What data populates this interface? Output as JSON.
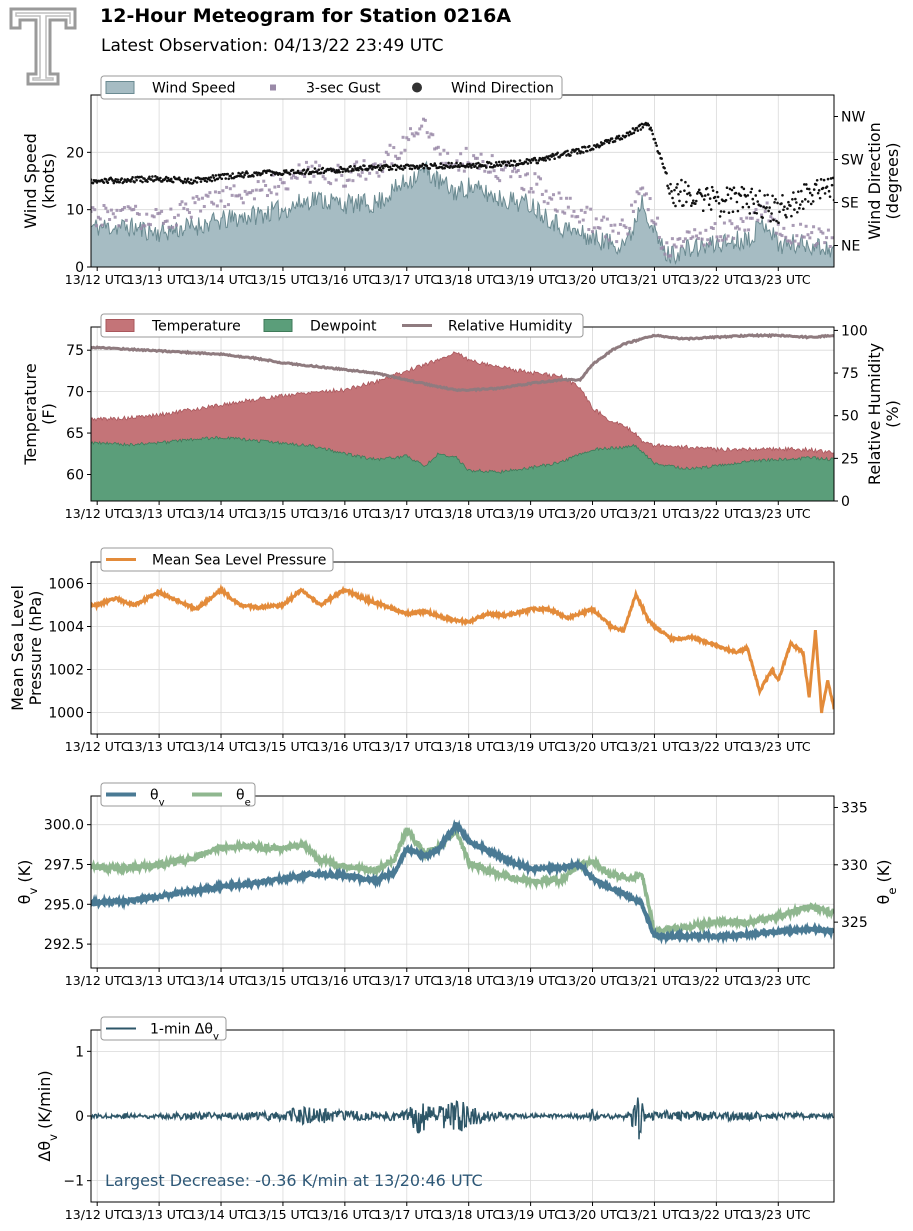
{
  "header": {
    "title": "12-Hour Meteogram for Station 0216A",
    "subtitle": "Latest Observation: 04/13/22 23:49 UTC"
  },
  "colors": {
    "wind_speed": "#a6bcc3",
    "wind_speed_line": "#6a8a91",
    "gust": "#9a8aa8",
    "wind_dir": "#111111",
    "temperature": "#c47478",
    "dewpoint": "#5b9e7a",
    "rh": "#8f7b7f",
    "pressure": "#e38b3a",
    "theta_v": "#4a7a94",
    "theta_e": "#8fb78f",
    "dtheta": "#2d5668",
    "annotation": "#2e5877"
  },
  "chart_data": [
    {
      "type": "area",
      "name": "wind",
      "x_ticks": [
        "13/12 UTC",
        "13/13 UTC",
        "13/14 UTC",
        "13/15 UTC",
        "13/16 UTC",
        "13/17 UTC",
        "13/18 UTC",
        "13/19 UTC",
        "13/20 UTC",
        "13/21 UTC",
        "13/22 UTC",
        "13/23 UTC"
      ],
      "xlim_hours": [
        11.9,
        23.9
      ],
      "ylabel": "Wind Speed\n(knots)",
      "ylim": [
        0,
        30
      ],
      "y_ticks": [
        0,
        10,
        20
      ],
      "y2label": "Wind Direction\n(degrees)",
      "y2_ticks": [
        "NE",
        "SE",
        "SW",
        "NW"
      ],
      "y2_tick_values": [
        45,
        135,
        225,
        315
      ],
      "y2lim": [
        0,
        360
      ],
      "legend": [
        "Wind Speed",
        "3-sec Gust",
        "Wind Direction"
      ],
      "series": [
        {
          "name": "Wind Speed",
          "x": [
            12.0,
            12.5,
            13.0,
            13.5,
            14.0,
            14.5,
            15.0,
            15.5,
            16.0,
            16.5,
            17.0,
            17.3,
            17.5,
            17.8,
            18.0,
            18.5,
            19.0,
            19.5,
            20.0,
            20.4,
            20.6,
            20.8,
            21.0,
            21.2,
            21.5,
            22.0,
            22.5,
            22.8,
            23.0,
            23.5,
            23.9
          ],
          "values": [
            7,
            7,
            6,
            7,
            8,
            9,
            10,
            12,
            11,
            11,
            15,
            17,
            15,
            13,
            14,
            12,
            11,
            7,
            5,
            4,
            5,
            12,
            6,
            2,
            3,
            4,
            5,
            8,
            4,
            4,
            3
          ]
        },
        {
          "name": "3-sec Gust",
          "x": [
            12.0,
            12.5,
            13.0,
            13.5,
            14.0,
            14.5,
            15.0,
            15.5,
            16.0,
            16.5,
            17.0,
            17.3,
            17.5,
            17.8,
            18.0,
            18.5,
            19.0,
            19.5,
            20.0,
            20.4,
            20.6,
            20.8,
            21.0,
            21.2,
            21.5,
            22.0,
            22.5,
            22.8,
            23.0,
            23.5,
            23.9
          ],
          "values": [
            9,
            9,
            8,
            10,
            12,
            13,
            15,
            17,
            16,
            17,
            22,
            26,
            20,
            18,
            19,
            17,
            15,
            11,
            8,
            6,
            8,
            15,
            8,
            3,
            5,
            6,
            7,
            11,
            6,
            6,
            5
          ]
        },
        {
          "name": "Wind Direction",
          "x": [
            12.0,
            12.5,
            13.0,
            13.5,
            14.0,
            14.5,
            15.0,
            15.5,
            16.0,
            16.5,
            17.0,
            17.5,
            18.0,
            18.5,
            19.0,
            19.5,
            20.0,
            20.5,
            20.9,
            21.1,
            21.3,
            21.5,
            22.0,
            22.5,
            23.0,
            23.5,
            23.9
          ],
          "values": [
            180,
            182,
            185,
            180,
            188,
            195,
            198,
            200,
            205,
            208,
            210,
            212,
            212,
            215,
            220,
            235,
            250,
            275,
            300,
            230,
            150,
            160,
            135,
            140,
            120,
            150,
            170
          ]
        }
      ]
    },
    {
      "type": "area",
      "name": "temperature",
      "x_ticks": [
        "13/12 UTC",
        "13/13 UTC",
        "13/14 UTC",
        "13/15 UTC",
        "13/16 UTC",
        "13/17 UTC",
        "13/18 UTC",
        "13/19 UTC",
        "13/20 UTC",
        "13/21 UTC",
        "13/22 UTC",
        "13/23 UTC"
      ],
      "xlim_hours": [
        11.9,
        23.9
      ],
      "ylabel": "Temperature\n(F)",
      "ylim": [
        56.8,
        77.8
      ],
      "y_ticks": [
        60,
        65,
        70,
        75
      ],
      "y2label": "Relative Humidity\n(%)",
      "y2lim": [
        0,
        102
      ],
      "y2_ticks": [
        0,
        25,
        50,
        75,
        100
      ],
      "legend": [
        "Temperature",
        "Dewpoint",
        "Relative Humidity"
      ],
      "series": [
        {
          "name": "Temperature",
          "x": [
            12.0,
            12.5,
            13.0,
            13.5,
            14.0,
            14.5,
            15.0,
            15.5,
            16.0,
            16.5,
            17.0,
            17.5,
            17.8,
            18.0,
            18.5,
            19.0,
            19.5,
            19.8,
            20.0,
            20.3,
            20.5,
            20.7,
            20.8,
            21.0,
            21.5,
            22.0,
            22.5,
            23.0,
            23.5,
            23.9
          ],
          "values": [
            66.7,
            66.8,
            67.2,
            67.8,
            68.4,
            69.0,
            69.5,
            70.0,
            70.2,
            71.2,
            72.5,
            73.8,
            74.8,
            73.8,
            73.0,
            72.3,
            71.8,
            70.5,
            68.0,
            66.5,
            65.8,
            65.0,
            64.0,
            63.5,
            63.3,
            63.0,
            63.1,
            63.1,
            63.0,
            62.6
          ]
        },
        {
          "name": "Dewpoint",
          "x": [
            12.0,
            12.5,
            13.0,
            13.5,
            14.0,
            14.5,
            15.0,
            15.5,
            16.0,
            16.5,
            17.0,
            17.3,
            17.5,
            17.8,
            18.0,
            18.5,
            19.0,
            19.5,
            20.0,
            20.5,
            20.7,
            21.0,
            21.5,
            22.0,
            22.5,
            23.0,
            23.5,
            23.9
          ],
          "values": [
            63.8,
            63.6,
            63.8,
            64.2,
            64.5,
            64.1,
            63.8,
            63.4,
            62.5,
            61.8,
            62.2,
            61.0,
            62.5,
            62.0,
            60.5,
            60.3,
            60.8,
            61.5,
            63.0,
            63.3,
            63.5,
            61.3,
            60.7,
            61.0,
            61.6,
            61.8,
            62.0,
            61.8
          ]
        },
        {
          "name": "Relative Humidity",
          "x": [
            12.0,
            12.5,
            13.0,
            13.5,
            14.0,
            14.5,
            15.0,
            15.5,
            16.0,
            16.5,
            17.0,
            17.5,
            17.8,
            18.0,
            18.5,
            19.0,
            19.5,
            19.8,
            20.0,
            20.3,
            20.5,
            20.7,
            21.0,
            21.5,
            22.0,
            22.5,
            23.0,
            23.5,
            23.9
          ],
          "values": [
            90,
            89,
            88,
            87,
            86,
            84,
            81,
            79,
            77,
            75,
            71,
            67,
            65,
            65,
            66,
            69,
            71,
            71,
            80,
            88,
            92,
            94,
            97,
            95,
            96,
            97,
            97,
            96,
            97
          ]
        }
      ]
    },
    {
      "type": "line",
      "name": "pressure",
      "x_ticks": [
        "13/12 UTC",
        "13/13 UTC",
        "13/14 UTC",
        "13/15 UTC",
        "13/16 UTC",
        "13/17 UTC",
        "13/18 UTC",
        "13/19 UTC",
        "13/20 UTC",
        "13/21 UTC",
        "13/22 UTC",
        "13/23 UTC"
      ],
      "xlim_hours": [
        11.9,
        23.9
      ],
      "ylabel": "Mean Sea Level\nPressure (hPa)",
      "ylim": [
        999.0,
        1007.0
      ],
      "y_ticks": [
        1000,
        1002,
        1004,
        1006
      ],
      "legend": [
        "Mean Sea Level Pressure"
      ],
      "series": [
        {
          "name": "Mean Sea Level Pressure",
          "x": [
            12.0,
            12.3,
            12.6,
            13.0,
            13.3,
            13.6,
            14.0,
            14.3,
            14.6,
            15.0,
            15.3,
            15.6,
            16.0,
            16.3,
            16.6,
            17.0,
            17.3,
            17.6,
            18.0,
            18.3,
            18.6,
            19.0,
            19.3,
            19.6,
            20.0,
            20.3,
            20.5,
            20.7,
            20.9,
            21.0,
            21.3,
            21.6,
            22.0,
            22.3,
            22.5,
            22.7,
            22.9,
            23.0,
            23.2,
            23.4,
            23.5,
            23.6,
            23.7,
            23.8,
            23.9
          ],
          "values": [
            1005.0,
            1005.3,
            1005.0,
            1005.6,
            1005.2,
            1004.8,
            1005.7,
            1005.0,
            1004.9,
            1005.0,
            1005.7,
            1005.0,
            1005.7,
            1005.3,
            1005.0,
            1004.6,
            1004.7,
            1004.4,
            1004.2,
            1004.6,
            1004.5,
            1004.8,
            1004.8,
            1004.4,
            1004.8,
            1004.0,
            1003.8,
            1005.5,
            1004.3,
            1004.0,
            1003.4,
            1003.5,
            1003.1,
            1002.8,
            1003.0,
            1001.0,
            1002.0,
            1001.5,
            1003.2,
            1002.8,
            1000.7,
            1003.8,
            1000.0,
            1001.5,
            1000.2
          ]
        }
      ]
    },
    {
      "type": "line",
      "name": "theta",
      "x_ticks": [
        "13/12 UTC",
        "13/13 UTC",
        "13/14 UTC",
        "13/15 UTC",
        "13/16 UTC",
        "13/17 UTC",
        "13/18 UTC",
        "13/19 UTC",
        "13/20 UTC",
        "13/21 UTC",
        "13/22 UTC",
        "13/23 UTC"
      ],
      "xlim_hours": [
        11.9,
        23.9
      ],
      "ylabel": "θv (K)",
      "ylim": [
        291.0,
        301.8
      ],
      "y_ticks": [
        292.5,
        295.0,
        297.5,
        300.0
      ],
      "y2label": "θe (K)",
      "y2lim": [
        321.0,
        336.0
      ],
      "y2_ticks": [
        325,
        330,
        335
      ],
      "legend": [
        "θv",
        "θe"
      ],
      "series": [
        {
          "name": "θv",
          "x": [
            12.0,
            12.5,
            13.0,
            13.5,
            14.0,
            14.5,
            15.0,
            15.5,
            16.0,
            16.5,
            16.8,
            17.0,
            17.3,
            17.5,
            17.8,
            18.0,
            18.3,
            18.6,
            19.0,
            19.5,
            19.8,
            20.0,
            20.3,
            20.6,
            20.8,
            21.0,
            21.5,
            22.0,
            22.5,
            23.0,
            23.5,
            23.9
          ],
          "values": [
            295.1,
            295.2,
            295.5,
            295.8,
            296.1,
            296.3,
            296.6,
            296.9,
            296.8,
            296.5,
            297.0,
            298.5,
            298.0,
            298.4,
            300.0,
            299.0,
            298.4,
            297.8,
            297.2,
            297.3,
            297.5,
            296.6,
            296.0,
            295.5,
            295.0,
            293.0,
            293.0,
            293.0,
            293.1,
            293.3,
            293.4,
            293.3
          ]
        },
        {
          "name": "θe",
          "x": [
            12.0,
            12.5,
            13.0,
            13.5,
            14.0,
            14.5,
            15.0,
            15.3,
            15.6,
            16.0,
            16.5,
            16.8,
            17.0,
            17.3,
            17.5,
            17.8,
            18.0,
            18.3,
            18.6,
            19.0,
            19.5,
            19.8,
            20.0,
            20.3,
            20.6,
            20.8,
            21.0,
            21.5,
            22.0,
            22.5,
            23.0,
            23.5,
            23.9
          ],
          "values": [
            329.8,
            329.7,
            330.0,
            330.5,
            331.5,
            331.6,
            331.4,
            331.8,
            330.4,
            329.8,
            329.5,
            330.5,
            333.0,
            331.0,
            331.5,
            333.0,
            330.2,
            329.5,
            329.0,
            328.5,
            328.7,
            330.0,
            330.3,
            329.1,
            328.9,
            329.0,
            324.2,
            324.5,
            325.0,
            325.0,
            325.5,
            326.4,
            325.8
          ]
        }
      ]
    },
    {
      "type": "line",
      "name": "dtheta",
      "x_ticks": [
        "13/12 UTC",
        "13/13 UTC",
        "13/14 UTC",
        "13/15 UTC",
        "13/16 UTC",
        "13/17 UTC",
        "13/18 UTC",
        "13/19 UTC",
        "13/20 UTC",
        "13/21 UTC",
        "13/22 UTC",
        "13/23 UTC"
      ],
      "xlim_hours": [
        11.9,
        23.9
      ],
      "ylabel": "Δθv (K/min)",
      "ylim": [
        -1.33,
        1.33
      ],
      "y_ticks": [
        -1,
        0,
        1
      ],
      "legend": [
        "1-min Δθv"
      ],
      "annotation": "Largest Decrease: -0.36 K/min at 13/20:46 UTC",
      "series": [
        {
          "name": "1-min Δθv",
          "x": [
            12.0,
            12.5,
            13.0,
            13.5,
            14.0,
            14.5,
            15.0,
            15.3,
            15.6,
            16.0,
            16.5,
            17.0,
            17.2,
            17.4,
            17.6,
            17.8,
            18.0,
            18.3,
            18.6,
            19.0,
            19.5,
            19.8,
            20.0,
            20.3,
            20.6,
            20.75,
            20.9,
            21.2,
            21.5,
            22.0,
            22.5,
            23.0,
            23.5,
            23.9
          ],
          "values": [
            0.0,
            0.05,
            0.03,
            0.06,
            0.05,
            0.06,
            0.08,
            0.15,
            0.12,
            0.08,
            0.06,
            0.09,
            0.28,
            0.12,
            0.18,
            0.3,
            0.15,
            0.08,
            0.04,
            0.03,
            0.02,
            0.05,
            -0.1,
            0.06,
            -0.1,
            -0.36,
            0.05,
            0.08,
            0.06,
            0.07,
            0.06,
            0.05,
            0.04,
            0.0
          ]
        }
      ]
    }
  ]
}
